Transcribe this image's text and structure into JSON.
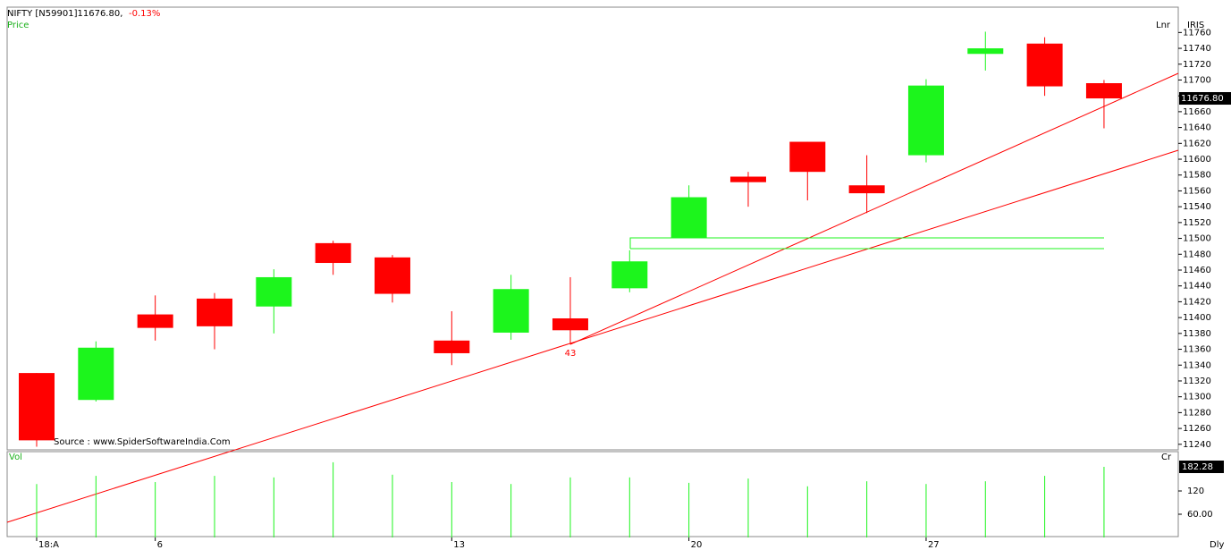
{
  "chart_data": {
    "type": "candlestick",
    "title": "NIFTY [N59901]11676.80,",
    "change": "-0.13%",
    "price_label": "Price",
    "scale_label": "Lnr",
    "brand": "IRIS",
    "source": "Source : www.SpiderSoftwareIndia.Com",
    "volume_label": "Vol",
    "volume_unit": "Cr",
    "period": "Dly",
    "annotation": {
      "text": "43",
      "index": 9
    },
    "categories": [
      "18:A",
      null,
      "6",
      null,
      null,
      null,
      null,
      "13",
      null,
      null,
      null,
      "20",
      null,
      null,
      null,
      "27",
      null,
      null,
      null
    ],
    "open": [
      11330,
      11296,
      11404,
      11424,
      11414,
      11494,
      11476,
      11371,
      11381,
      11399,
      11437,
      11501,
      11578,
      11622,
      11567,
      11605,
      11733,
      11746,
      11696
    ],
    "high": [
      11330,
      11370,
      11428,
      11431,
      11461,
      11497,
      11479,
      11408,
      11454,
      11451,
      11485,
      11567,
      11584,
      11622,
      11605,
      11701,
      11761,
      11754,
      11700
    ],
    "low": [
      11237,
      11294,
      11371,
      11360,
      11380,
      11454,
      11419,
      11340,
      11372,
      11366,
      11432,
      11501,
      11540,
      11548,
      11532,
      11596,
      11712,
      11680,
      11639
    ],
    "close": [
      11245,
      11362,
      11387,
      11389,
      11451,
      11469,
      11430,
      11355,
      11436,
      11384,
      11471,
      11552,
      11571,
      11584,
      11557,
      11693,
      11740,
      11692,
      11676.8
    ],
    "up_color": "#1cf51c",
    "down_color": "#ff0000",
    "last_price": {
      "value": 11676.8,
      "label": "11676.80"
    },
    "ylim": [
      11233,
      11792
    ],
    "yticks": [
      11240,
      11260,
      11280,
      11300,
      11320,
      11340,
      11360,
      11380,
      11400,
      11420,
      11440,
      11460,
      11480,
      11500,
      11520,
      11540,
      11560,
      11580,
      11600,
      11620,
      11640,
      11660,
      11680,
      11700,
      11720,
      11740,
      11760
    ],
    "volume": [
      138,
      159,
      143,
      159,
      155,
      194,
      162,
      143,
      138,
      155,
      155,
      141,
      152,
      132,
      145,
      138,
      145,
      159,
      182.28
    ],
    "volume_color": "#1cf51c",
    "last_volume": {
      "value": 182.28,
      "label": "182.28"
    },
    "volume_ylim": [
      0,
      221.5
    ],
    "volume_yticks": [
      {
        "value": 60,
        "label": "60.00"
      },
      120
    ]
  }
}
